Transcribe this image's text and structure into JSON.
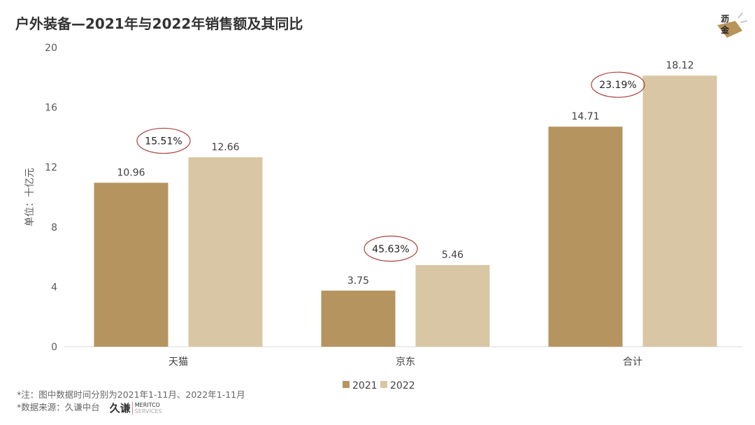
{
  "title": "户外装备—2021年与2022年销售额及其同比",
  "logo_text": "沥金",
  "notes": {
    "note": "*注：图中数据时间分别为2021年1-11月、2022年1-11月",
    "source": "*数据来源：久谦中台",
    "brand_cn": "久谦",
    "brand_en": "MERITCO",
    "brand_en_sub": "SERVICES"
  },
  "chart_data": {
    "type": "bar",
    "title": "户外装备—2021年与2022年销售额及其同比",
    "ylabel": "单位：十亿元",
    "xlabel": "",
    "categories": [
      "天猫",
      "京东",
      "合计"
    ],
    "series": [
      {
        "name": "2021",
        "values": [
          10.96,
          3.75,
          14.71
        ],
        "color": "#b5945f"
      },
      {
        "name": "2022",
        "values": [
          12.66,
          5.46,
          18.12
        ],
        "color": "#d9c6a4"
      }
    ],
    "yoy_labels": [
      "15.51%",
      "45.63%",
      "23.19%"
    ],
    "yoy_outline_color": "#a8423e",
    "ylim": [
      0,
      20
    ],
    "yticks": [
      0,
      4,
      8,
      12,
      16,
      20
    ],
    "grid": false,
    "legend": "bottom"
  }
}
